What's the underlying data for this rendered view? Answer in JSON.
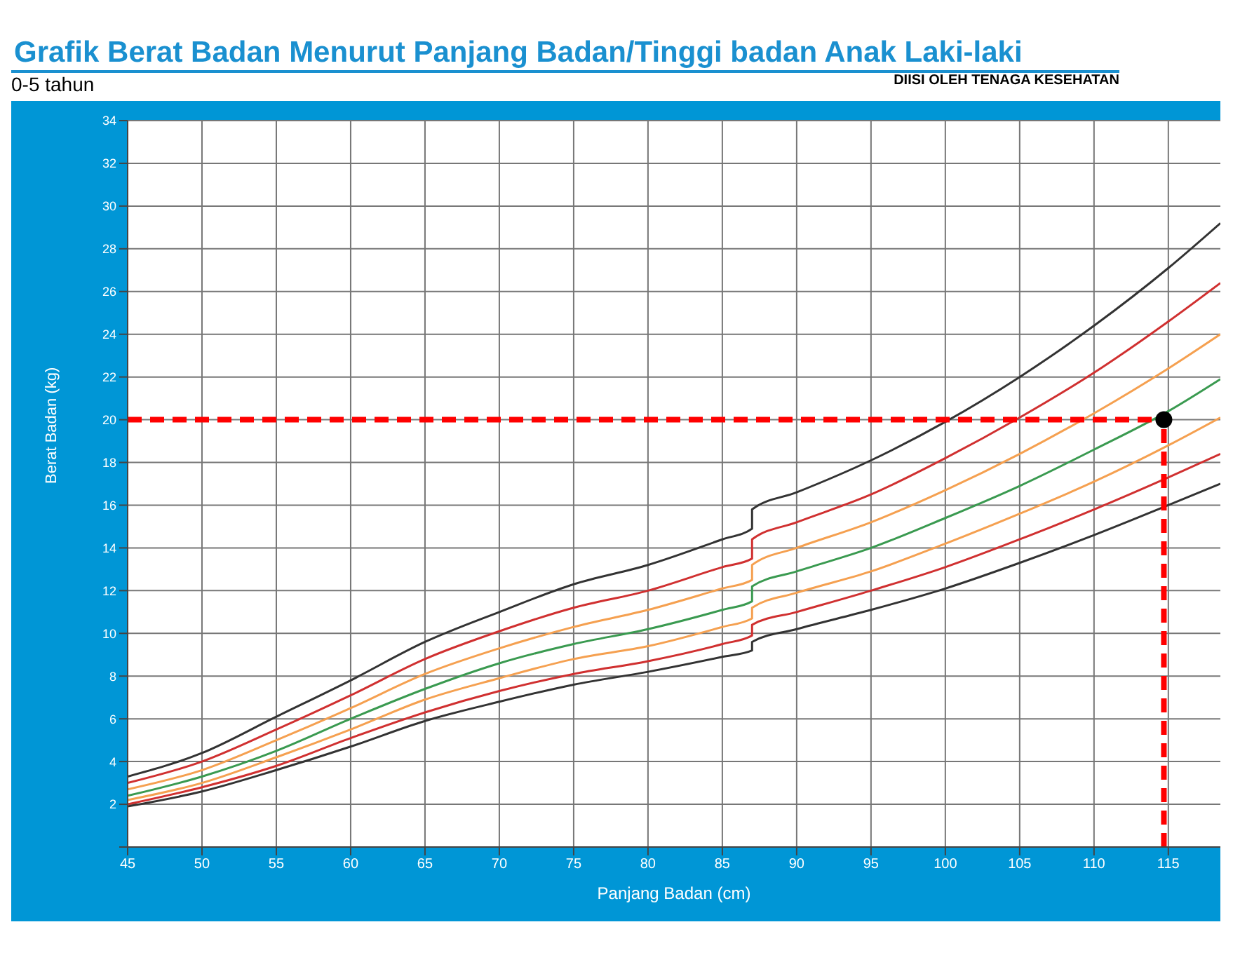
{
  "chart_data": {
    "type": "line",
    "title": "Grafik Berat Badan Menurut Panjang Badan/Tinggi badan Anak Laki-laki",
    "subtitle": "0-5 tahun",
    "annotations": [
      "DIISI OLEH TENAGA KESEHATAN"
    ],
    "xlabel": "Panjang Badan (cm)",
    "ylabel": "Berat Badan (kg)",
    "xlim": [
      45,
      118.5
    ],
    "ylim": [
      0,
      34
    ],
    "xticks": [
      45,
      50,
      55,
      60,
      65,
      70,
      75,
      80,
      85,
      90,
      95,
      100,
      105,
      110,
      115
    ],
    "yticks": [
      {
        "value": 0,
        "label": null
      },
      2,
      4,
      6,
      8,
      10,
      12,
      14,
      16,
      18,
      20,
      22,
      24,
      26,
      28,
      30,
      32,
      34
    ],
    "grid": true,
    "marker": "none",
    "line_style": "solid",
    "x": [
      45,
      50,
      55,
      60,
      65,
      70,
      75,
      80,
      85,
      87,
      87,
      90,
      95,
      100,
      105,
      110,
      115,
      118.5
    ],
    "series": [
      {
        "color": "#333333",
        "values": [
          1.9,
          2.6,
          3.6,
          4.7,
          5.9,
          6.8,
          7.6,
          8.2,
          8.9,
          9.2,
          9.6,
          10.2,
          11.1,
          12.1,
          13.3,
          14.6,
          16.0,
          17.0
        ]
      },
      {
        "color": "#d03030",
        "values": [
          2.0,
          2.8,
          3.8,
          5.1,
          6.3,
          7.3,
          8.1,
          8.7,
          9.5,
          9.9,
          10.4,
          11.0,
          12.0,
          13.1,
          14.4,
          15.8,
          17.3,
          18.4
        ]
      },
      {
        "color": "#f5a050",
        "values": [
          2.2,
          3.0,
          4.2,
          5.5,
          6.9,
          7.9,
          8.8,
          9.4,
          10.3,
          10.7,
          11.2,
          11.9,
          12.9,
          14.2,
          15.6,
          17.1,
          18.8,
          20.1
        ]
      },
      {
        "color": "#3a9a50",
        "values": [
          2.4,
          3.3,
          4.5,
          6.0,
          7.4,
          8.6,
          9.5,
          10.2,
          11.1,
          11.5,
          12.2,
          12.9,
          14.0,
          15.4,
          16.9,
          18.6,
          20.4,
          21.9
        ]
      },
      {
        "color": "#f5a050",
        "values": [
          2.7,
          3.6,
          5.0,
          6.5,
          8.1,
          9.3,
          10.3,
          11.1,
          12.1,
          12.5,
          13.2,
          14.0,
          15.2,
          16.7,
          18.4,
          20.3,
          22.4,
          24.0
        ]
      },
      {
        "color": "#d03030",
        "values": [
          3.0,
          4.0,
          5.5,
          7.1,
          8.8,
          10.1,
          11.2,
          12.0,
          13.1,
          13.5,
          14.4,
          15.2,
          16.5,
          18.2,
          20.1,
          22.2,
          24.6,
          26.4
        ]
      },
      {
        "color": "#333333",
        "values": [
          3.3,
          4.4,
          6.1,
          7.8,
          9.6,
          11.0,
          12.3,
          13.2,
          14.4,
          14.9,
          15.8,
          16.6,
          18.1,
          19.9,
          22.0,
          24.4,
          27.1,
          29.2
        ]
      },
      {
        "type": "scatter",
        "marker": "circle",
        "color": "#000000",
        "x": [
          114.7
        ],
        "values": [
          20
        ]
      }
    ],
    "ref_lines": [
      {
        "axis": "y",
        "value": 20,
        "color": "#ff0000",
        "line_style": "dashed"
      },
      {
        "axis": "x",
        "value": 114.7,
        "color": "#ff0000",
        "line_style": "dashed"
      }
    ]
  }
}
